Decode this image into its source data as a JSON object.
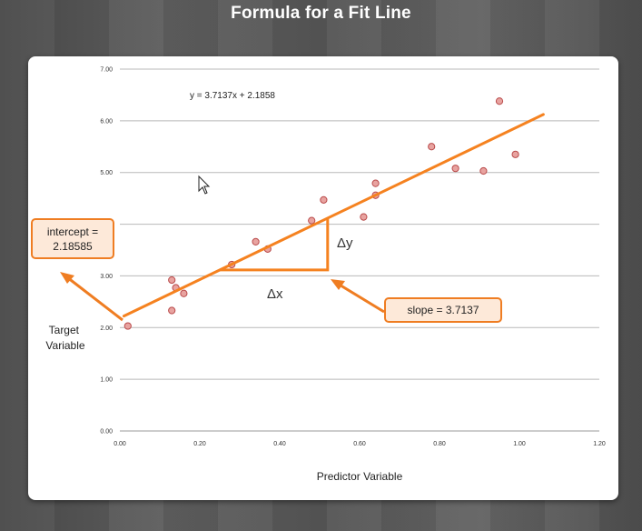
{
  "page": {
    "title": "Formula for a Fit Line"
  },
  "colors": {
    "fit_line": "#f58220",
    "point_fill": "#e8a3a0",
    "point_stroke": "#b94a4a",
    "grid": "#b9b9b9"
  },
  "chart_data": {
    "type": "scatter",
    "title": "",
    "xlabel": "Predictor Variable",
    "ylabel": "Target Variable",
    "xlim": [
      0,
      1.2
    ],
    "ylim": [
      0,
      7
    ],
    "x_ticks": [
      "0.00",
      "0.20",
      "0.40",
      "0.60",
      "0.80",
      "1.00",
      "1.20"
    ],
    "y_ticks": [
      "0.00",
      "1.00",
      "2.00",
      "3.00",
      "4.00",
      "5.00",
      "6.00",
      "7.00"
    ],
    "grid": "horizontal",
    "equation": "y = 3.7137x + 2.1858",
    "points": [
      {
        "x": 0.02,
        "y": 2.03
      },
      {
        "x": 0.13,
        "y": 2.92
      },
      {
        "x": 0.13,
        "y": 2.33
      },
      {
        "x": 0.14,
        "y": 2.77
      },
      {
        "x": 0.16,
        "y": 2.66
      },
      {
        "x": 0.28,
        "y": 3.22
      },
      {
        "x": 0.34,
        "y": 3.66
      },
      {
        "x": 0.37,
        "y": 3.52
      },
      {
        "x": 0.48,
        "y": 4.07
      },
      {
        "x": 0.51,
        "y": 4.47
      },
      {
        "x": 0.61,
        "y": 4.14
      },
      {
        "x": 0.64,
        "y": 4.79
      },
      {
        "x": 0.64,
        "y": 4.56
      },
      {
        "x": 0.78,
        "y": 5.5
      },
      {
        "x": 0.84,
        "y": 5.08
      },
      {
        "x": 0.91,
        "y": 5.03
      },
      {
        "x": 0.95,
        "y": 6.38
      },
      {
        "x": 0.99,
        "y": 5.35
      }
    ],
    "fit_line": {
      "slope": 3.7137,
      "intercept": 2.1858,
      "x_start": 0.01,
      "x_end": 1.06
    },
    "annotations": {
      "intercept_label": "intercept =",
      "intercept_value": "2.18585",
      "slope_label": "slope = 3.7137",
      "delta_x": "Δx",
      "delta_y": "Δy",
      "triangle": {
        "x1": 0.25,
        "x2": 0.52
      }
    }
  }
}
